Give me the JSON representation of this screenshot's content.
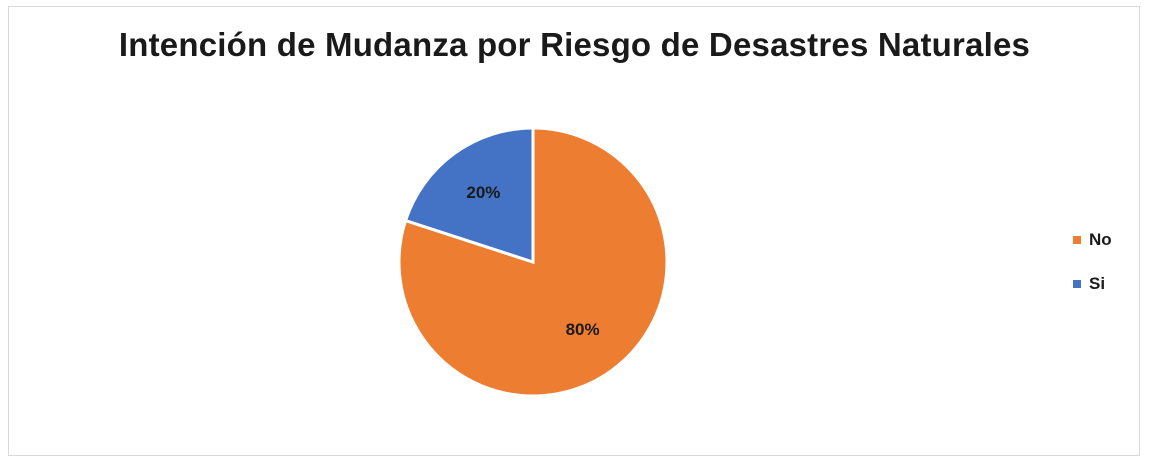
{
  "chart_data": {
    "type": "pie",
    "title": "Intención de Mudanza por Riesgo de Desastres Naturales",
    "slices": [
      {
        "name": "No",
        "value": 80,
        "label": "80%",
        "color": "#ED7D31"
      },
      {
        "name": "Si",
        "value": 20,
        "label": "20%",
        "color": "#4472C4"
      }
    ],
    "legend_position": "right"
  }
}
